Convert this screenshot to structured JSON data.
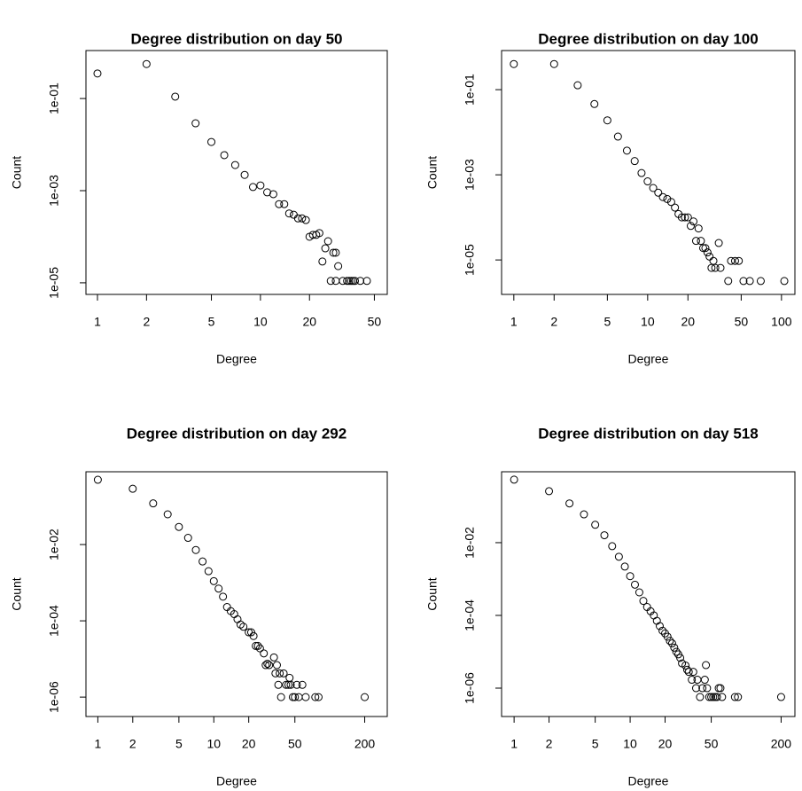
{
  "chart_data": [
    {
      "type": "scatter",
      "title": "Degree distribution on day 50",
      "xlabel": "Degree",
      "ylabel": "Count",
      "log_x": true,
      "log_y": true,
      "color": "#000000",
      "x": [
        1,
        2,
        3,
        4,
        5,
        6,
        7,
        8,
        9,
        10,
        11,
        12,
        13,
        14,
        15,
        16,
        17,
        18,
        19,
        20,
        21,
        22,
        23,
        24,
        25,
        26,
        28,
        29,
        30,
        27,
        29,
        32,
        34,
        35,
        36,
        37,
        38,
        41,
        45
      ],
      "values": [
        0.35,
        0.56,
        0.11,
        0.029,
        0.0114,
        0.0059,
        0.0036,
        0.0022,
        0.0012,
        0.0013,
        0.00092,
        0.00084,
        0.00051,
        0.00051,
        0.00032,
        0.0003,
        0.00025,
        0.00025,
        0.00023,
        0.0001,
        0.00011,
        0.00011,
        0.00012,
        2.9e-05,
        5.6e-05,
        8e-05,
        4.5e-05,
        4.5e-05,
        2.3e-05,
        1.1e-05,
        1.1e-05,
        1.1e-05,
        1.1e-05,
        1.1e-05,
        1.1e-05,
        1.1e-05,
        1.1e-05,
        1.1e-05,
        1.1e-05
      ],
      "xlim": [
        0.85,
        60
      ],
      "ylim": [
        1.1,
        5.6e-06
      ],
      "xticks": [
        1,
        2,
        5,
        10,
        20,
        50
      ],
      "yticks": [
        {
          "value": 0.1,
          "label": "1e-01"
        },
        {
          "value": 0.001,
          "label": "1e-03"
        },
        {
          "value": 1e-05,
          "label": "1e-05"
        }
      ]
    },
    {
      "type": "scatter",
      "title": "Degree distribution on day 100",
      "xlabel": "Degree",
      "ylabel": "Count",
      "log_x": true,
      "log_y": true,
      "color": "#000000",
      "x": [
        1,
        2,
        3,
        4,
        5,
        6,
        7,
        8,
        9,
        10,
        11,
        12,
        13,
        14,
        15,
        16,
        17,
        18,
        19,
        20,
        21,
        22,
        23,
        24,
        25,
        26,
        27,
        28,
        29,
        30,
        31,
        32,
        34,
        35,
        40,
        42,
        45,
        48,
        52,
        58,
        70,
        105
      ],
      "values": [
        0.4,
        0.4,
        0.127,
        0.046,
        0.019,
        0.0079,
        0.0037,
        0.0021,
        0.0011,
        0.0007,
        0.00049,
        0.00038,
        0.0003,
        0.00027,
        0.00023,
        0.00017,
        0.00012,
        0.0001,
        0.0001,
        0.0001,
        6.3e-05,
        8e-05,
        2.8e-05,
        5.5e-05,
        2.8e-05,
        1.9e-05,
        1.9e-05,
        1.5e-05,
        1.2e-05,
        6.5e-06,
        9.5e-06,
        6.5e-06,
        2.5e-05,
        6.5e-06,
        3.2e-06,
        9.5e-06,
        9.5e-06,
        9.5e-06,
        3.2e-06,
        3.2e-06,
        3.2e-06,
        3.2e-06
      ],
      "xlim": [
        0.81,
        126
      ],
      "ylim": [
        0.83,
        1.55e-06
      ],
      "xticks": [
        1,
        2,
        5,
        10,
        20,
        50,
        100
      ],
      "yticks": [
        {
          "value": 0.1,
          "label": "1e-01"
        },
        {
          "value": 0.001,
          "label": "1e-03"
        },
        {
          "value": 1e-05,
          "label": "1e-05"
        }
      ]
    },
    {
      "type": "scatter",
      "title": "Degree distribution on day 292",
      "xlabel": "Degree",
      "ylabel": "Count",
      "log_x": true,
      "log_y": true,
      "color": "#000000",
      "x": [
        1,
        2,
        3,
        4,
        5,
        6,
        7,
        8,
        9,
        10,
        11,
        12,
        13,
        14,
        15,
        16,
        17,
        18,
        20,
        21,
        22,
        23,
        24,
        25,
        27,
        28,
        29,
        30,
        33,
        34,
        35,
        36,
        37,
        38,
        40,
        42,
        44,
        45,
        46,
        48,
        50,
        52,
        54,
        58,
        62,
        75,
        80,
        200
      ],
      "values": [
        0.5,
        0.29,
        0.12,
        0.062,
        0.029,
        0.015,
        0.0072,
        0.0036,
        0.002,
        0.0011,
        0.0007,
        0.00043,
        0.00023,
        0.00018,
        0.00015,
        0.00011,
        8e-05,
        7e-05,
        5e-05,
        5e-05,
        4e-05,
        2.2e-05,
        2.2e-05,
        1.9e-05,
        1.4e-05,
        6.9e-06,
        7.5e-06,
        6.9e-06,
        1.1e-05,
        4.2e-06,
        6.9e-06,
        2.1e-06,
        4.2e-06,
        1e-06,
        4.2e-06,
        2.1e-06,
        2.1e-06,
        3.2e-06,
        2.1e-06,
        1e-06,
        1e-06,
        2.1e-06,
        1e-06,
        2.1e-06,
        1e-06,
        1e-06,
        1e-06,
        1e-06
      ],
      "xlim": [
        0.79,
        313
      ],
      "ylim": [
        0.81,
        3.1e-07
      ],
      "xticks": [
        1,
        2,
        5,
        10,
        20,
        50,
        200
      ],
      "yticks": [
        {
          "value": 0.01,
          "label": "1e-02"
        },
        {
          "value": 0.0001,
          "label": "1e-04"
        },
        {
          "value": 1e-06,
          "label": "1e-06"
        }
      ]
    },
    {
      "type": "scatter",
      "title": "Degree distribution on day 518",
      "xlabel": "Degree",
      "ylabel": "Count",
      "log_x": true,
      "log_y": true,
      "color": "#000000",
      "x": [
        1,
        2,
        3,
        4,
        5,
        6,
        7,
        8,
        9,
        10,
        11,
        12,
        13,
        14,
        15,
        16,
        17,
        18,
        19,
        20,
        21,
        22,
        23,
        24,
        25,
        26,
        27,
        28,
        30,
        31,
        32,
        34,
        35,
        37,
        38,
        40,
        42,
        44,
        45,
        46,
        48,
        50,
        52,
        54,
        56,
        58,
        60,
        62,
        80,
        85,
        200
      ],
      "values": [
        0.54,
        0.26,
        0.12,
        0.06,
        0.031,
        0.016,
        0.008,
        0.0041,
        0.0022,
        0.0012,
        0.0007,
        0.00043,
        0.00025,
        0.00017,
        0.00013,
        0.0001,
        7.1e-05,
        5.1e-05,
        3.8e-05,
        3.2e-05,
        2.6e-05,
        2e-05,
        1.7e-05,
        1.3e-05,
        1e-05,
        8.5e-06,
        6.8e-06,
        4.8e-06,
        4.2e-06,
        3.2e-06,
        2.8e-06,
        1.7e-06,
        2.8e-06,
        1e-06,
        1.7e-06,
        5.7e-07,
        1e-06,
        1.7e-06,
        4.3e-06,
        1e-06,
        5.7e-07,
        5.7e-07,
        5.7e-07,
        5.7e-07,
        5.7e-07,
        1e-06,
        1e-06,
        5.7e-07,
        5.7e-07,
        5.7e-07,
        5.7e-07
      ],
      "xlim": [
        0.78,
        263
      ],
      "ylim": [
        0.89,
        1.66e-07
      ],
      "xticks": [
        1,
        2,
        5,
        10,
        20,
        50,
        200
      ],
      "yticks": [
        {
          "value": 0.01,
          "label": "1e-02"
        },
        {
          "value": 0.0001,
          "label": "1e-04"
        },
        {
          "value": 1e-06,
          "label": "1e-06"
        }
      ]
    }
  ]
}
